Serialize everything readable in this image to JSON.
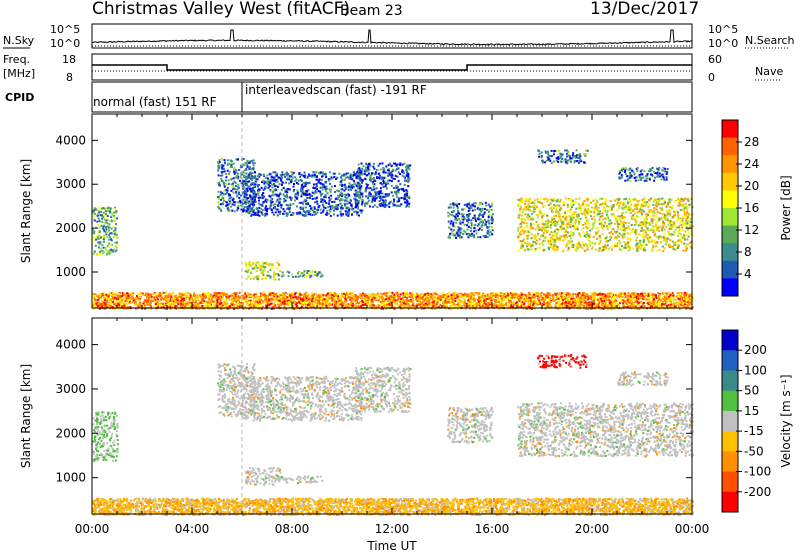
{
  "header": {
    "station": "Christmas Valley West (fitACF)",
    "beam": "Beam 23",
    "date": "13/Dec/2017"
  },
  "top_labels": {
    "nsky": "N.Sky",
    "freq": "Freq.",
    "freq_unit": "[MHz]",
    "cpid": "CPID",
    "nsearch": "N.Search",
    "nave": "Nave",
    "noise_ticks": [
      "10^5",
      "10^0"
    ],
    "freq_ticks": [
      "18",
      "8"
    ],
    "nave_ticks": [
      "60",
      "0"
    ]
  },
  "cpid_segments": [
    "normal (fast) 151 RF",
    "interleavedscan (fast) -191 RF"
  ],
  "panels": {
    "power": {
      "ylabel": "Slant Range [km]",
      "cbar_label": "Power [dB]",
      "cbar_ticks": [
        "28",
        "24",
        "20",
        "16",
        "12",
        "8",
        "4"
      ],
      "cbar_colors": [
        "#ff0000",
        "#ff6400",
        "#ff9600",
        "#ffc800",
        "#ffff00",
        "#a0e632",
        "#5aaa5a",
        "#3c8c8c",
        "#1e5ab4",
        "#0000ff"
      ]
    },
    "velocity": {
      "ylabel": "Slant Range [km]",
      "cbar_label": "Velocity [m s⁻¹]",
      "cbar_ticks": [
        "200",
        "100",
        "50",
        "15",
        "-15",
        "-50",
        "-100",
        "-200"
      ],
      "cbar_colors": [
        "#0000cc",
        "#2060c0",
        "#3a8a8a",
        "#50c040",
        "#c0c0c0",
        "#ffc000",
        "#ff9000",
        "#ff5000",
        "#ff0000"
      ]
    }
  },
  "chart_data": {
    "type": "heatmap",
    "x": {
      "label": "Time UT",
      "range_hours": [
        0,
        24
      ],
      "ticks": [
        "00:00",
        "04:00",
        "08:00",
        "12:00",
        "16:00",
        "20:00",
        "00:00"
      ]
    },
    "y": {
      "label": "Slant Range [km]",
      "range_km": [
        180,
        4600
      ],
      "ticks": [
        1000,
        2000,
        3000,
        4000
      ]
    },
    "cpid_switch_hour": 6.0,
    "frequency_mhz": [
      {
        "from": 0,
        "to": 3,
        "value": 13.5
      },
      {
        "from": 3,
        "to": 15,
        "value": 11
      },
      {
        "from": 15,
        "to": 24,
        "value": 13.5
      }
    ],
    "scatter_regions": [
      {
        "t": [
          0.0,
          1.0
        ],
        "r": [
          1400,
          2500
        ],
        "power": 12,
        "velocity": "15 to -15 / positive"
      },
      {
        "t": [
          5.0,
          6.5
        ],
        "r": [
          2400,
          3600
        ],
        "power": 8,
        "velocity": "-15 to 15"
      },
      {
        "t": [
          6.0,
          10.8
        ],
        "r": [
          2300,
          3300
        ],
        "power": 6,
        "velocity": "-15 to 15"
      },
      {
        "t": [
          10.5,
          12.7
        ],
        "r": [
          2500,
          3500
        ],
        "power": 6,
        "velocity": "-15 to 15"
      },
      {
        "t": [
          6.1,
          7.5
        ],
        "r": [
          850,
          1250
        ],
        "power": 16,
        "velocity": "-15 to 15"
      },
      {
        "t": [
          7.4,
          9.2
        ],
        "r": [
          900,
          1050
        ],
        "power": 12,
        "velocity": "-15 to 15"
      },
      {
        "t": [
          0.0,
          24.0
        ],
        "r": [
          180,
          550
        ],
        "power": 24,
        "velocity": "-15 to -100"
      },
      {
        "t": [
          14.2,
          16.0
        ],
        "r": [
          1800,
          2600
        ],
        "power": 8,
        "velocity": "-15 to 15"
      },
      {
        "t": [
          17.0,
          24.0
        ],
        "r": [
          1500,
          2700
        ],
        "power": 18,
        "velocity": "-15 to 15"
      },
      {
        "t": [
          17.8,
          19.8
        ],
        "r": [
          3500,
          3800
        ],
        "power": 8,
        "velocity": "-200"
      },
      {
        "t": [
          21.0,
          23.0
        ],
        "r": [
          3100,
          3400
        ],
        "power": 8,
        "velocity": "-15 to 15"
      }
    ]
  }
}
